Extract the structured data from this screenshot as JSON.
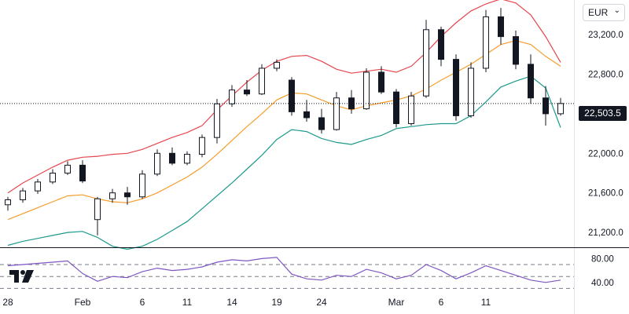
{
  "currency_selector": {
    "label": "EUR",
    "chevron_icon": "chevron-down-icon"
  },
  "current_price": {
    "label": "22,503.5",
    "value": 22503.5
  },
  "logo": {
    "icon": "tradingview-logo-icon"
  },
  "colors": {
    "up": "#131722",
    "down": "#131722",
    "bb_upper": "#e5464e",
    "bb_basis": "#f59d2a",
    "bb_lower": "#1c9a8c",
    "rsi": "#7e57c2"
  },
  "x_ticks": [
    {
      "label": "28",
      "index": 0
    },
    {
      "label": "Feb",
      "index": 5
    },
    {
      "label": "6",
      "index": 9
    },
    {
      "label": "11",
      "index": 12
    },
    {
      "label": "14",
      "index": 15
    },
    {
      "label": "19",
      "index": 18
    },
    {
      "label": "24",
      "index": 21
    },
    {
      "label": "Mar",
      "index": 26
    },
    {
      "label": "6",
      "index": 29
    },
    {
      "label": "11",
      "index": 32
    }
  ],
  "chart_data": [
    {
      "type": "candlestick",
      "title": "",
      "ylim": [
        21050,
        23550
      ],
      "y_ticks": [
        {
          "label": "23,200.0",
          "value": 23200
        },
        {
          "label": "22,800.0",
          "value": 22800
        },
        {
          "label": "22,400.0",
          "value": 22400
        },
        {
          "label": "22,000.0",
          "value": 22000
        },
        {
          "label": "21,600.0",
          "value": 21600
        },
        {
          "label": "21,200.0",
          "value": 21200
        }
      ],
      "candles": [
        {
          "o": 21480,
          "h": 21560,
          "l": 21420,
          "c": 21530
        },
        {
          "o": 21530,
          "h": 21650,
          "l": 21500,
          "c": 21620
        },
        {
          "o": 21620,
          "h": 21740,
          "l": 21590,
          "c": 21710
        },
        {
          "o": 21710,
          "h": 21840,
          "l": 21690,
          "c": 21800
        },
        {
          "o": 21800,
          "h": 21920,
          "l": 21780,
          "c": 21880
        },
        {
          "o": 21880,
          "h": 21930,
          "l": 21700,
          "c": 21720
        },
        {
          "o": 21330,
          "h": 21560,
          "l": 21170,
          "c": 21540
        },
        {
          "o": 21540,
          "h": 21640,
          "l": 21500,
          "c": 21600
        },
        {
          "o": 21600,
          "h": 21660,
          "l": 21480,
          "c": 21560
        },
        {
          "o": 21560,
          "h": 21830,
          "l": 21540,
          "c": 21790
        },
        {
          "o": 21790,
          "h": 22040,
          "l": 21770,
          "c": 22000
        },
        {
          "o": 22000,
          "h": 22060,
          "l": 21880,
          "c": 21900
        },
        {
          "o": 21900,
          "h": 22020,
          "l": 21880,
          "c": 21990
        },
        {
          "o": 21990,
          "h": 22190,
          "l": 21960,
          "c": 22160
        },
        {
          "o": 22160,
          "h": 22550,
          "l": 22100,
          "c": 22500
        },
        {
          "o": 22500,
          "h": 22690,
          "l": 22470,
          "c": 22640
        },
        {
          "o": 22640,
          "h": 22740,
          "l": 22580,
          "c": 22600
        },
        {
          "o": 22600,
          "h": 22900,
          "l": 22590,
          "c": 22860
        },
        {
          "o": 22860,
          "h": 22950,
          "l": 22830,
          "c": 22920
        },
        {
          "o": 22740,
          "h": 22770,
          "l": 22380,
          "c": 22420
        },
        {
          "o": 22420,
          "h": 22540,
          "l": 22320,
          "c": 22360
        },
        {
          "o": 22360,
          "h": 22450,
          "l": 22200,
          "c": 22240
        },
        {
          "o": 22240,
          "h": 22620,
          "l": 22230,
          "c": 22560
        },
        {
          "o": 22560,
          "h": 22640,
          "l": 22400,
          "c": 22450
        },
        {
          "o": 22450,
          "h": 22860,
          "l": 22440,
          "c": 22820
        },
        {
          "o": 22820,
          "h": 22880,
          "l": 22600,
          "c": 22620
        },
        {
          "o": 22620,
          "h": 22650,
          "l": 22260,
          "c": 22300
        },
        {
          "o": 22300,
          "h": 22620,
          "l": 22280,
          "c": 22580
        },
        {
          "o": 22580,
          "h": 23350,
          "l": 22560,
          "c": 23250
        },
        {
          "o": 23250,
          "h": 23280,
          "l": 22880,
          "c": 22950
        },
        {
          "o": 22950,
          "h": 23000,
          "l": 22330,
          "c": 22380
        },
        {
          "o": 22380,
          "h": 22920,
          "l": 22360,
          "c": 22860
        },
        {
          "o": 22860,
          "h": 23450,
          "l": 22820,
          "c": 23380
        },
        {
          "o": 23380,
          "h": 23470,
          "l": 23100,
          "c": 23180
        },
        {
          "o": 23180,
          "h": 23240,
          "l": 22850,
          "c": 22900
        },
        {
          "o": 22900,
          "h": 23000,
          "l": 22500,
          "c": 22560
        },
        {
          "o": 22560,
          "h": 22680,
          "l": 22280,
          "c": 22400
        },
        {
          "o": 22400,
          "h": 22560,
          "l": 22380,
          "c": 22503.5
        }
      ],
      "bb_upper": [
        21600,
        21700,
        21780,
        21860,
        21930,
        21960,
        21970,
        21990,
        22000,
        22040,
        22100,
        22160,
        22210,
        22280,
        22440,
        22580,
        22720,
        22840,
        22930,
        22980,
        22990,
        22930,
        22850,
        22810,
        22830,
        22850,
        22820,
        22880,
        23020,
        23180,
        23320,
        23440,
        23510,
        23560,
        23520,
        23400,
        23180,
        22920
      ],
      "bb_basis": [
        21330,
        21390,
        21450,
        21510,
        21570,
        21580,
        21540,
        21510,
        21500,
        21540,
        21600,
        21680,
        21760,
        21860,
        21990,
        22130,
        22270,
        22400,
        22540,
        22610,
        22600,
        22540,
        22480,
        22440,
        22480,
        22510,
        22540,
        22580,
        22650,
        22740,
        22820,
        22900,
        23000,
        23100,
        23140,
        23100,
        22980,
        22880
      ],
      "bb_lower": [
        21070,
        21110,
        21140,
        21170,
        21200,
        21210,
        21150,
        21060,
        21030,
        21060,
        21130,
        21220,
        21310,
        21440,
        21570,
        21700,
        21840,
        21980,
        22140,
        22240,
        22220,
        22150,
        22110,
        22090,
        22140,
        22180,
        22250,
        22270,
        22290,
        22300,
        22300,
        22380,
        22520,
        22670,
        22730,
        22780,
        22660,
        22260
      ],
      "rsi": {
        "ylim": [
          20,
          95
        ],
        "levels": [
          {
            "label": "80.00",
            "value": 80
          },
          {
            "label": "40.00",
            "value": 40
          }
        ],
        "overbought": 70,
        "oversold": 30,
        "middle": 50,
        "values": [
          68,
          70,
          72,
          74,
          76,
          55,
          42,
          50,
          48,
          58,
          64,
          60,
          62,
          66,
          74,
          78,
          76,
          80,
          82,
          54,
          46,
          44,
          52,
          50,
          62,
          56,
          46,
          52,
          70,
          60,
          46,
          56,
          68,
          60,
          52,
          44,
          40,
          44
        ]
      }
    }
  ]
}
